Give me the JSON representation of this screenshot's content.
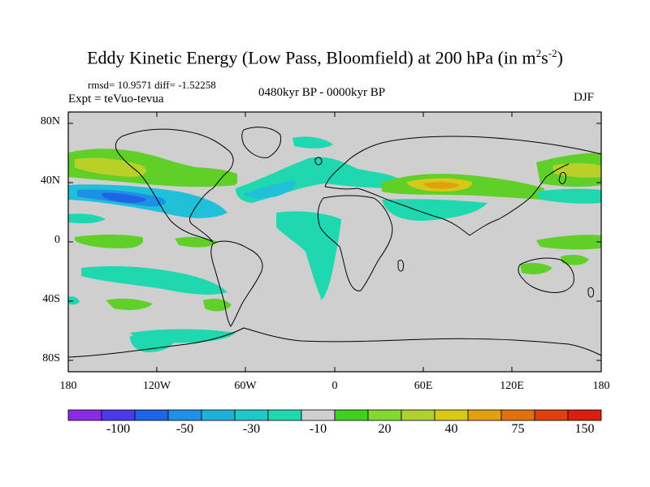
{
  "title": {
    "main": "Eddy Kinetic Energy (Low Pass, Bloomfield) at 200 hPa (in m",
    "sup1": "2",
    "mid": "s",
    "sup2": "-2",
    "end": ")"
  },
  "subtitle": {
    "stats": "rmsd= 10.9571 diff= -1.52258",
    "expt": "Expt = teVuo-tevua",
    "period": "0480kyr BP - 0000kyr BP",
    "season": "DJF"
  },
  "axes": {
    "lat_labels": [
      "80N",
      "40N",
      "0",
      "40S",
      "80S"
    ],
    "lon_labels": [
      "180",
      "120W",
      "60W",
      "0",
      "60E",
      "120E",
      "180"
    ]
  },
  "colorbar": {
    "labels": [
      "-100",
      "-50",
      "-30",
      "-10",
      "20",
      "40",
      "75",
      "150"
    ],
    "colors": [
      "#8a2be2",
      "#4b3be6",
      "#1e64e6",
      "#1e90e6",
      "#20b0d8",
      "#20c8c8",
      "#20d8b0",
      "#cfcfcf",
      "#40d020",
      "#80d830",
      "#b0d030",
      "#d8c818",
      "#e0a010",
      "#e07010",
      "#e04010",
      "#d82010"
    ]
  },
  "colors": {
    "land_background": "#cfcfcf",
    "coast": "#000000"
  }
}
